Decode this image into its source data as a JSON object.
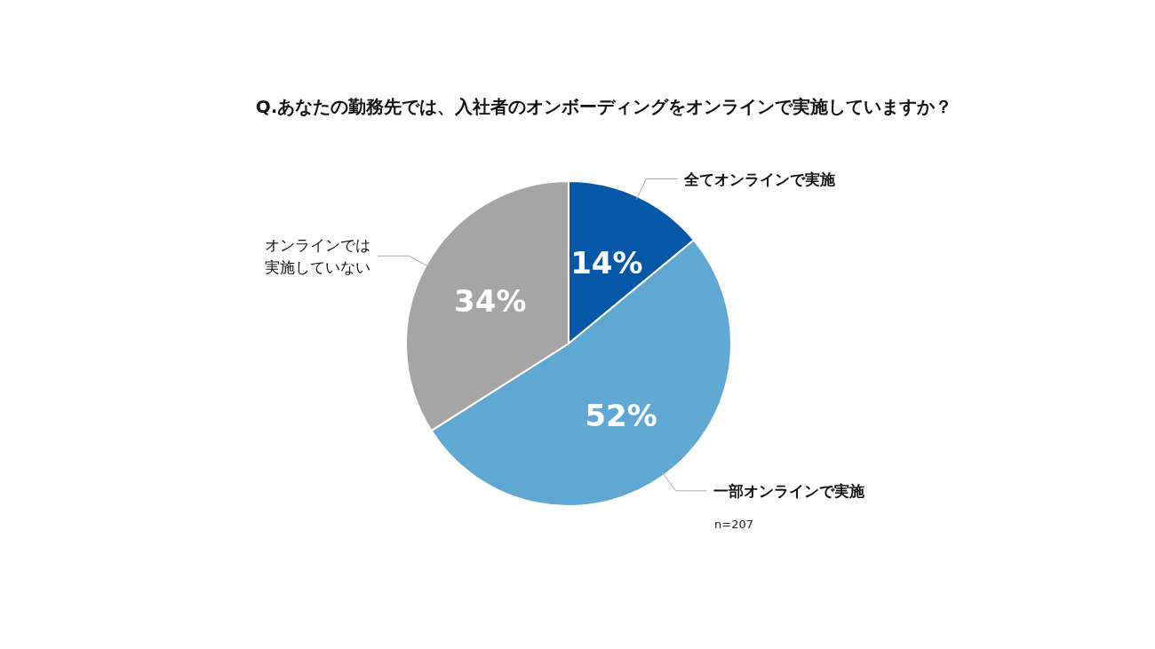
{
  "chart_data": {
    "type": "pie",
    "title": "Q.あなたの勤務先では、入社者のオンボーディングをオンラインで実施していますか？",
    "categories": [
      "全てオンラインで実施",
      "一部オンラインで実施",
      "オンラインでは実施していない"
    ],
    "values": [
      14,
      52,
      34
    ],
    "colors": [
      "#0558a8",
      "#5fa8d3",
      "#a5a5a5"
    ],
    "value_labels": [
      "14%",
      "52%",
      "34%"
    ],
    "annotations": [
      "n=207"
    ]
  }
}
